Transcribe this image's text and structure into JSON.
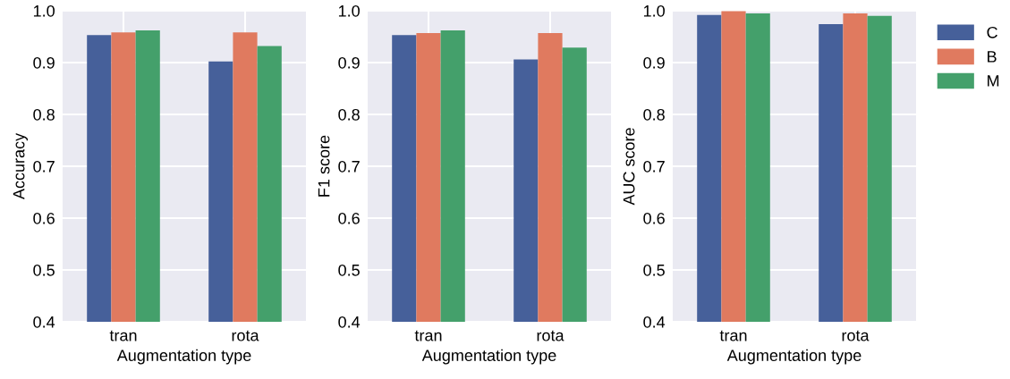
{
  "chart_data": [
    {
      "type": "bar",
      "categories": [
        "tran",
        "rota"
      ],
      "xlabel": "Augmentation type",
      "ylabel": "Accuracy",
      "ylim": [
        0.4,
        1.0
      ],
      "yticks": [
        {
          "value": 0.4,
          "label": "0.4"
        },
        {
          "value": 0.5,
          "label": "0.5"
        },
        {
          "value": 0.6,
          "label": "0.6"
        },
        {
          "value": 0.7,
          "label": "0.7"
        },
        {
          "value": 0.8,
          "label": "0.8"
        },
        {
          "value": 0.9,
          "label": "0.9"
        },
        {
          "value": 1.0,
          "label": "1.0"
        }
      ],
      "grid": true,
      "series": [
        {
          "color": "#46609a",
          "values": [
            0.953,
            0.902
          ]
        },
        {
          "color": "#e07a5f",
          "values": [
            0.958,
            0.958
          ]
        },
        {
          "color": "#44a06b",
          "values": [
            0.962,
            0.932
          ]
        }
      ]
    },
    {
      "type": "bar",
      "categories": [
        "tran",
        "rota"
      ],
      "xlabel": "Augmentation type",
      "ylabel": "F1 score",
      "ylim": [
        0.4,
        1.0
      ],
      "yticks": [
        {
          "value": 0.4,
          "label": "0.4"
        },
        {
          "value": 0.5,
          "label": "0.5"
        },
        {
          "value": 0.6,
          "label": "0.6"
        },
        {
          "value": 0.7,
          "label": "0.7"
        },
        {
          "value": 0.8,
          "label": "0.8"
        },
        {
          "value": 0.9,
          "label": "0.9"
        },
        {
          "value": 1.0,
          "label": "1.0"
        }
      ],
      "grid": true,
      "series": [
        {
          "color": "#46609a",
          "values": [
            0.953,
            0.906
          ]
        },
        {
          "color": "#e07a5f",
          "values": [
            0.957,
            0.957
          ]
        },
        {
          "color": "#44a06b",
          "values": [
            0.962,
            0.929
          ]
        }
      ]
    },
    {
      "type": "bar",
      "categories": [
        "tran",
        "rota"
      ],
      "xlabel": "Augmentation type",
      "ylabel": "AUC score",
      "ylim": [
        0.4,
        1.0
      ],
      "yticks": [
        {
          "value": 0.4,
          "label": "0.4"
        },
        {
          "value": 0.5,
          "label": "0.5"
        },
        {
          "value": 0.6,
          "label": "0.6"
        },
        {
          "value": 0.7,
          "label": "0.7"
        },
        {
          "value": 0.8,
          "label": "0.8"
        },
        {
          "value": 0.9,
          "label": "0.9"
        },
        {
          "value": 1.0,
          "label": "1.0"
        }
      ],
      "grid": true,
      "legend": "right",
      "series": [
        {
          "name": "C",
          "color": "#46609a",
          "values": [
            0.992,
            0.974
          ]
        },
        {
          "name": "B",
          "color": "#e07a5f",
          "values": [
            0.999,
            0.995
          ]
        },
        {
          "name": "M",
          "color": "#44a06b",
          "values": [
            0.995,
            0.99
          ]
        }
      ]
    }
  ]
}
